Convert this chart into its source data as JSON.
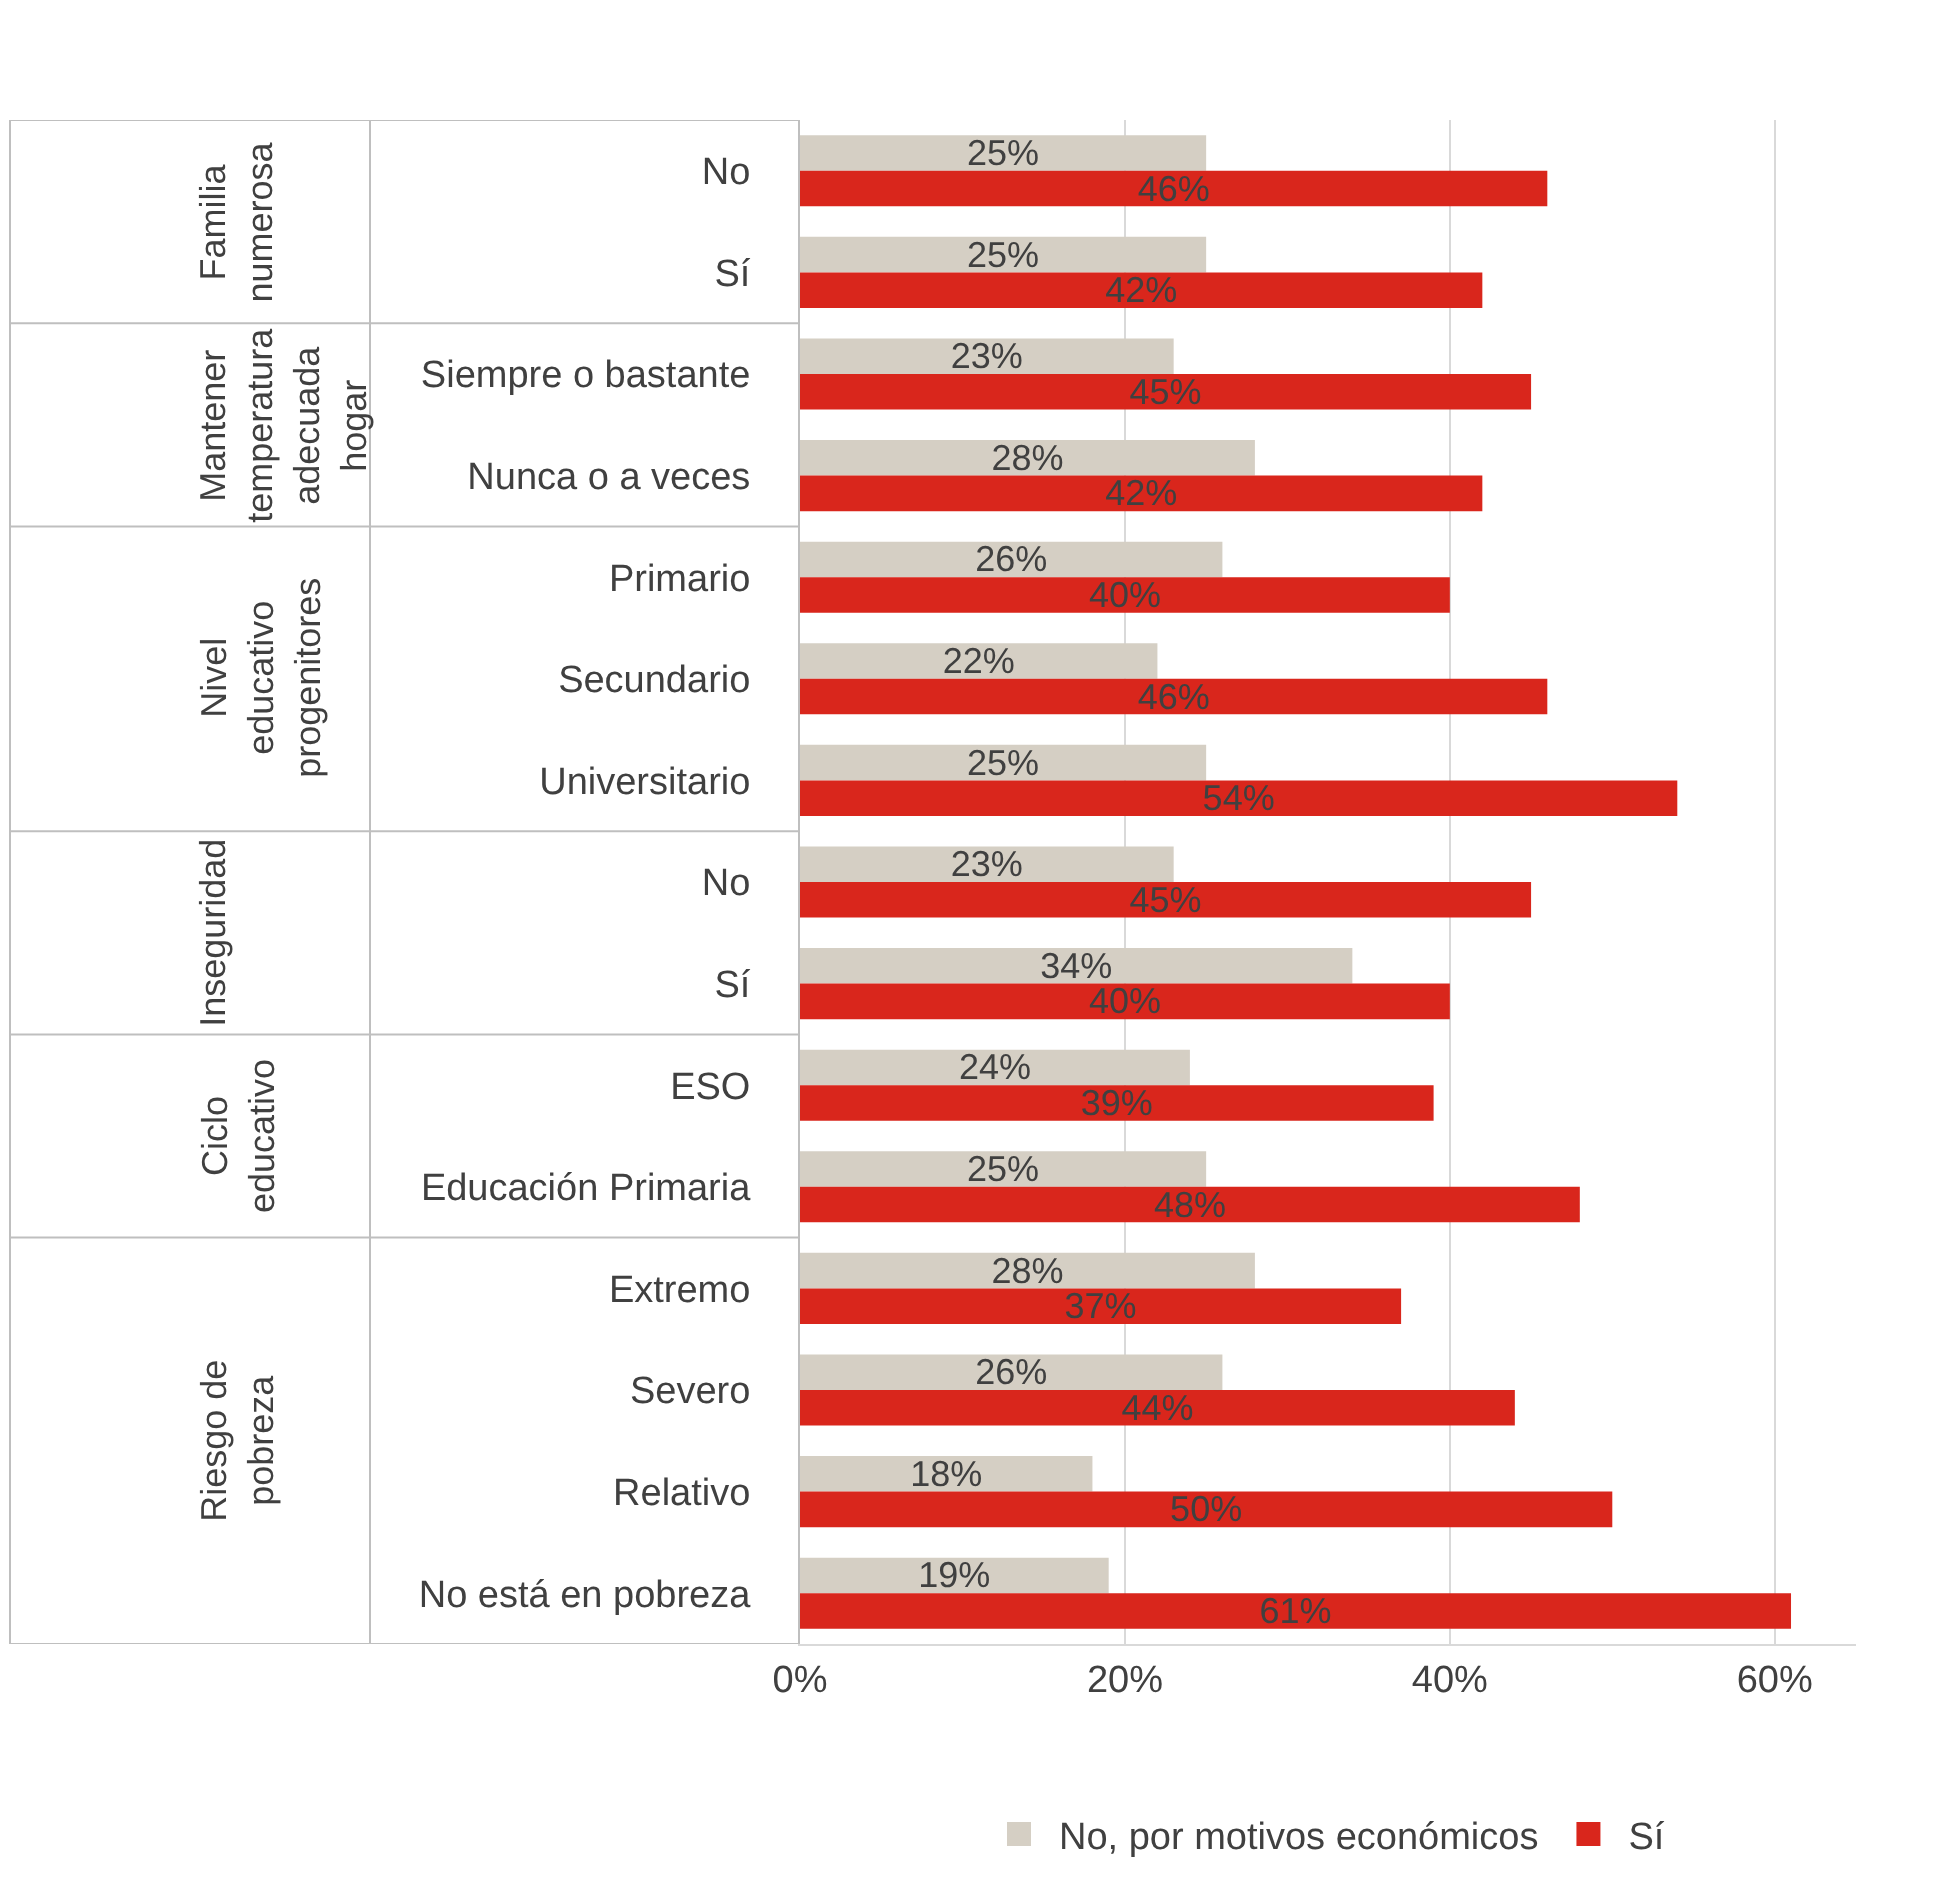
{
  "chart_data": {
    "type": "bar",
    "orientation": "horizontal",
    "categories": [
      "No",
      "Sí",
      "Siempre o bastante",
      "Nunca o a veces",
      "Primario",
      "Secundario",
      "Universitario",
      "No",
      "Sí",
      "ESO",
      "Educación Primaria",
      "Extremo",
      "Severo",
      "Relativo",
      "No está en pobreza"
    ],
    "series": [
      {
        "name": "No, por motivos económicos",
        "color": "#d5cfc4",
        "values": [
          25,
          25,
          23,
          28,
          26,
          22,
          25,
          23,
          34,
          24,
          25,
          28,
          26,
          18,
          19
        ],
        "value_labels": [
          "25%",
          "25%",
          "23%",
          "28%",
          "26%",
          "22%",
          "25%",
          "23%",
          "34%",
          "24%",
          "25%",
          "28%",
          "26%",
          "18%",
          "19%"
        ]
      },
      {
        "name": "Sí",
        "color": "#d9261c",
        "values": [
          46,
          42,
          45,
          42,
          40,
          46,
          54,
          45,
          40,
          39,
          48,
          37,
          44,
          50,
          61
        ],
        "value_labels": [
          "46%",
          "42%",
          "45%",
          "42%",
          "40%",
          "46%",
          "54%",
          "45%",
          "40%",
          "39%",
          "48%",
          "37%",
          "44%",
          "50%",
          "61%"
        ]
      }
    ],
    "annotations": [
      "Familia numerosa",
      "Mantener temperatura adecuada hogar",
      "Nivel educativo progenitores",
      "Inseguridad",
      "Ciclo educativo",
      "Riesgo de pobreza"
    ],
    "xlim": [
      0,
      65
    ],
    "xticks": [
      {
        "value": 0,
        "label": "0%"
      },
      {
        "value": 20,
        "label": "20%"
      },
      {
        "value": 40,
        "label": "40%"
      },
      {
        "value": 60,
        "label": "60%"
      }
    ],
    "grid": "x",
    "legend": "bottom"
  }
}
